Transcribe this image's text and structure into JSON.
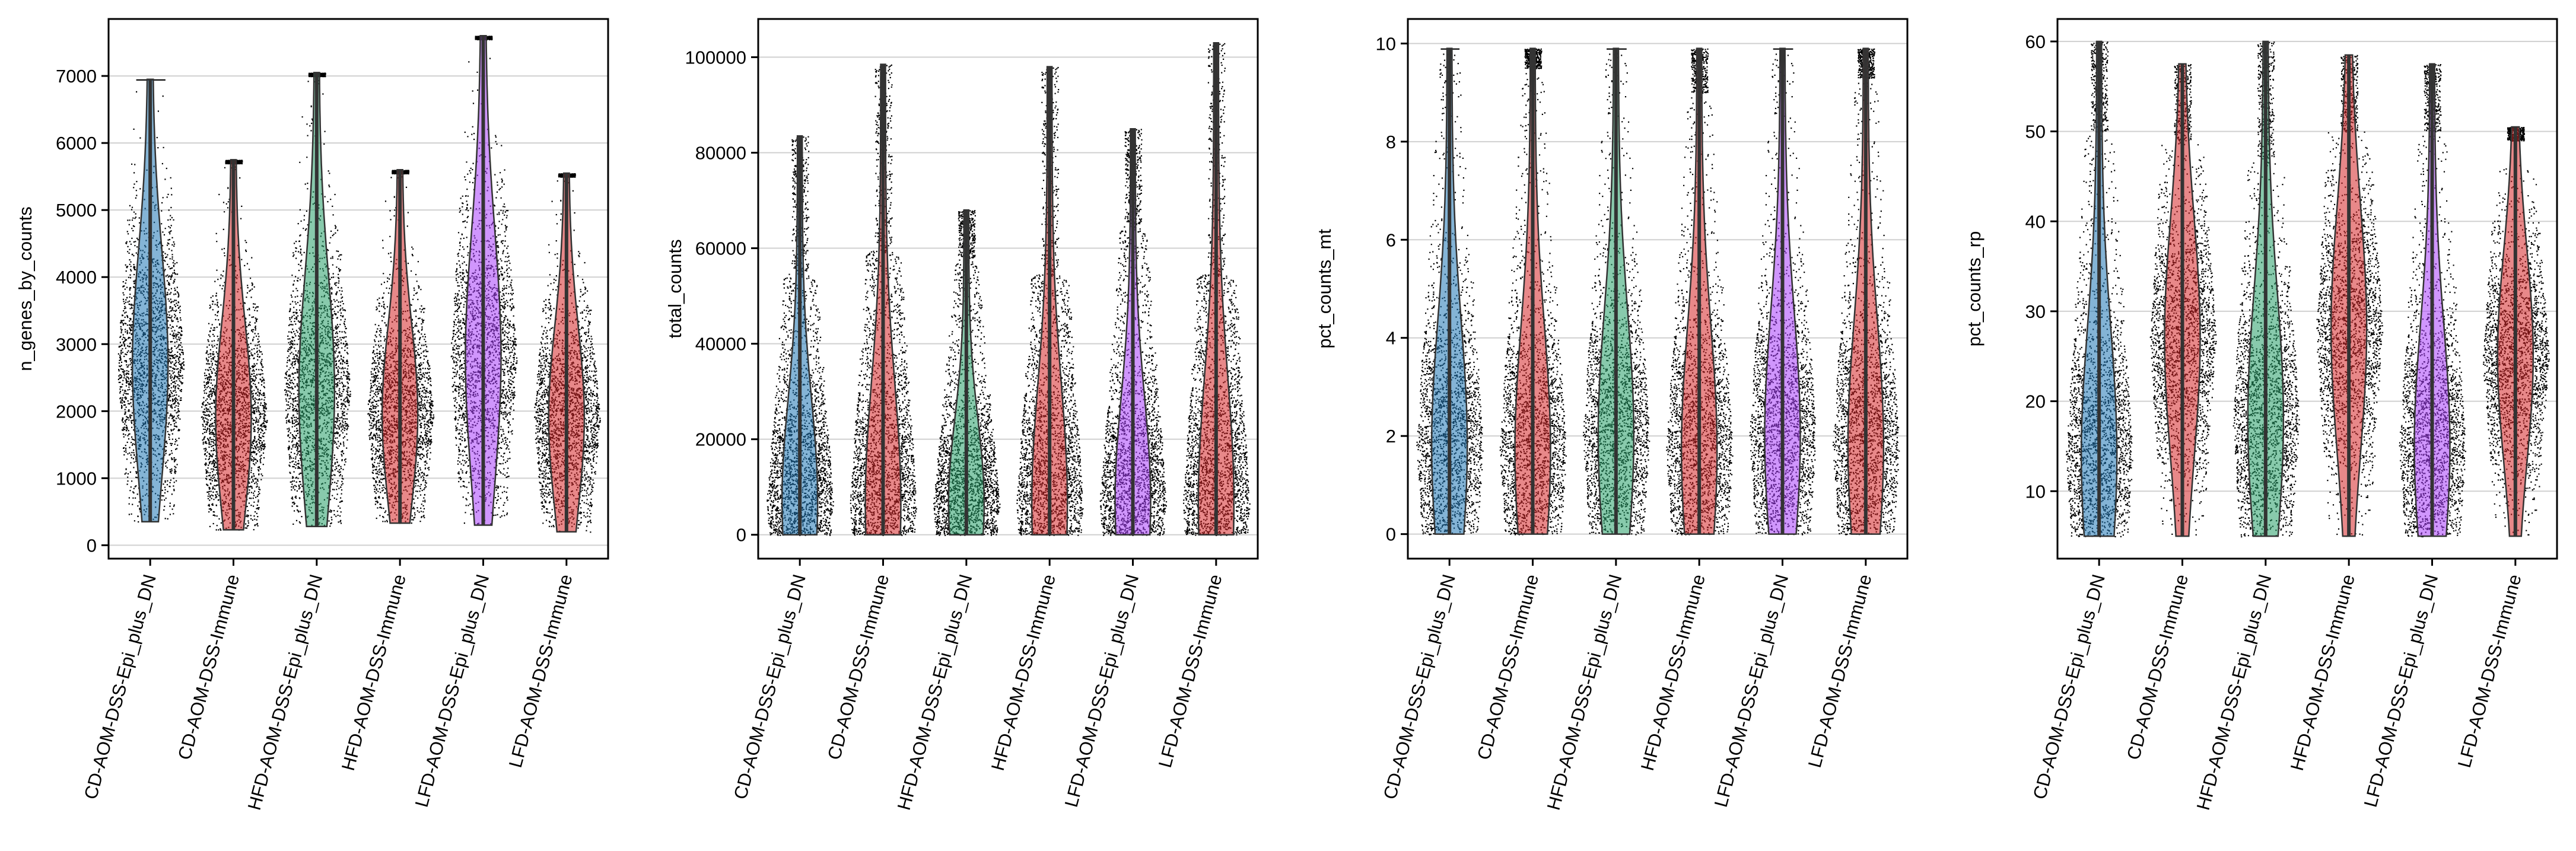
{
  "chart_data": [
    {
      "type": "violin",
      "ylabel": "n_genes_by_counts",
      "categories": [
        "CD-AOM-DSS-Epi_plus_DN",
        "CD-AOM-DSS-Immune",
        "HFD-AOM-DSS-Epi_plus_DN",
        "HFD-AOM-DSS-Immune",
        "LFD-AOM-DSS-Epi_plus_DN",
        "LFD-AOM-DSS-Immune"
      ],
      "ylim": [
        -200,
        7850
      ],
      "yticks": [
        0,
        1000,
        2000,
        3000,
        4000,
        5000,
        6000,
        7000
      ],
      "ytick_labels": [
        "0",
        "1000",
        "2000",
        "3000",
        "4000",
        "5000",
        "6000",
        "7000"
      ],
      "grid": "horizontal",
      "series": [
        {
          "min": 350,
          "max": 6950,
          "bulk_top": 6950,
          "median": 2700
        },
        {
          "min": 230,
          "max": 5750,
          "bulk_top": 5700,
          "median": 1900
        },
        {
          "min": 280,
          "max": 7050,
          "bulk_top": 7000,
          "median": 2300
        },
        {
          "min": 330,
          "max": 5600,
          "bulk_top": 5550,
          "median": 1950
        },
        {
          "min": 300,
          "max": 7600,
          "bulk_top": 7550,
          "median": 2800
        },
        {
          "min": 200,
          "max": 5550,
          "bulk_top": 5500,
          "median": 1900
        }
      ]
    },
    {
      "type": "violin",
      "ylabel": "total_counts",
      "categories": [
        "CD-AOM-DSS-Epi_plus_DN",
        "CD-AOM-DSS-Immune",
        "HFD-AOM-DSS-Epi_plus_DN",
        "HFD-AOM-DSS-Immune",
        "LFD-AOM-DSS-Epi_plus_DN",
        "LFD-AOM-DSS-Immune"
      ],
      "ylim": [
        -5000,
        108000
      ],
      "yticks": [
        0,
        20000,
        40000,
        60000,
        80000,
        100000
      ],
      "ytick_labels": [
        "0",
        "20000",
        "40000",
        "60000",
        "80000",
        "100000"
      ],
      "grid": "horizontal",
      "series": [
        {
          "min": 0,
          "max": 83500,
          "bulk_top": 55000,
          "median": 7000
        },
        {
          "min": 0,
          "max": 98500,
          "bulk_top": 60000,
          "median": 6500
        },
        {
          "min": 0,
          "max": 68000,
          "bulk_top": 58000,
          "median": 6500
        },
        {
          "min": 0,
          "max": 98000,
          "bulk_top": 55000,
          "median": 6500
        },
        {
          "min": 0,
          "max": 85000,
          "bulk_top": 65000,
          "median": 7000
        },
        {
          "min": 0,
          "max": 103000,
          "bulk_top": 55000,
          "median": 6500
        }
      ]
    },
    {
      "type": "violin",
      "ylabel": "pct_counts_mt",
      "categories": [
        "CD-AOM-DSS-Epi_plus_DN",
        "CD-AOM-DSS-Immune",
        "HFD-AOM-DSS-Epi_plus_DN",
        "HFD-AOM-DSS-Immune",
        "LFD-AOM-DSS-Epi_plus_DN",
        "LFD-AOM-DSS-Immune"
      ],
      "ylim": [
        -0.5,
        10.5
      ],
      "yticks": [
        0,
        2,
        4,
        6,
        8,
        10
      ],
      "ytick_labels": [
        "0",
        "2",
        "4",
        "6",
        "8",
        "10"
      ],
      "grid": "horizontal",
      "series": [
        {
          "min": 0,
          "max": 9.9,
          "bulk_top": 9.9,
          "median": 1.8
        },
        {
          "min": 0,
          "max": 9.9,
          "bulk_top": 9.5,
          "median": 1.7
        },
        {
          "min": 0,
          "max": 9.9,
          "bulk_top": 9.9,
          "median": 2.0
        },
        {
          "min": 0,
          "max": 9.9,
          "bulk_top": 9.0,
          "median": 1.7
        },
        {
          "min": 0,
          "max": 9.9,
          "bulk_top": 9.9,
          "median": 2.0
        },
        {
          "min": 0,
          "max": 9.9,
          "bulk_top": 9.3,
          "median": 1.8
        }
      ]
    },
    {
      "type": "violin",
      "ylabel": "pct_counts_rp",
      "categories": [
        "CD-AOM-DSS-Epi_plus_DN",
        "CD-AOM-DSS-Immune",
        "HFD-AOM-DSS-Epi_plus_DN",
        "HFD-AOM-DSS-Immune",
        "LFD-AOM-DSS-Epi_plus_DN",
        "LFD-AOM-DSS-Immune"
      ],
      "ylim": [
        2.5,
        62.5
      ],
      "yticks": [
        10,
        20,
        30,
        40,
        50,
        60
      ],
      "ytick_labels": [
        "10",
        "20",
        "30",
        "40",
        "50",
        "60"
      ],
      "grid": "horizontal",
      "series": [
        {
          "min": 5,
          "max": 60,
          "bulk_top": 50,
          "median": 14
        },
        {
          "min": 5,
          "max": 57.5,
          "bulk_top": 49,
          "median": 27
        },
        {
          "min": 5,
          "max": 60,
          "bulk_top": 47,
          "median": 18
        },
        {
          "min": 5,
          "max": 58.5,
          "bulk_top": 50,
          "median": 28
        },
        {
          "min": 5,
          "max": 57.5,
          "bulk_top": 50,
          "median": 15
        },
        {
          "min": 5,
          "max": 50.5,
          "bulk_top": 49,
          "median": 25
        }
      ]
    }
  ],
  "colors": {
    "groups": [
      "#1f77b4",
      "#d62728",
      "#279e68",
      "#d62728",
      "#aa40fc",
      "#d62728"
    ],
    "points": "#000000",
    "grid": "#d0d0d0",
    "axis": "#000000"
  }
}
